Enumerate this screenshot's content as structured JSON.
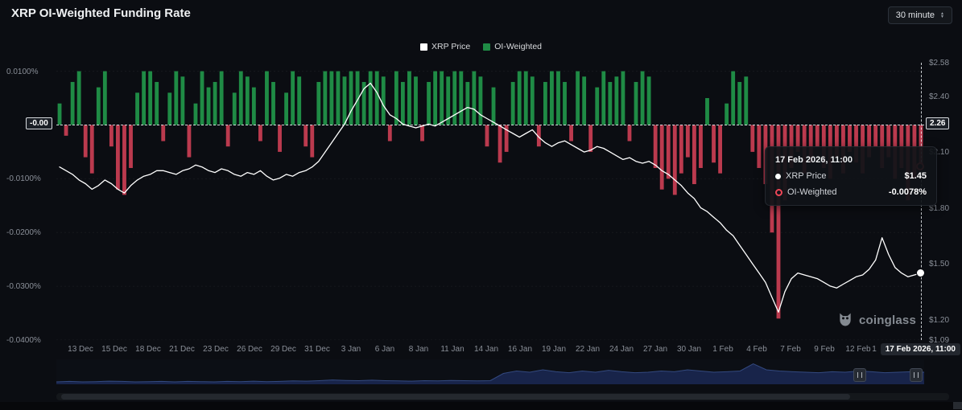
{
  "header": {
    "title": "XRP OI-Weighted Funding Rate",
    "interval_label": "30 minute"
  },
  "legend": [
    {
      "label": "XRP Price",
      "color": "#ffffff"
    },
    {
      "label": "OI-Weighted",
      "color": "#1f8b45"
    }
  ],
  "colors": {
    "background": "#0b0d12",
    "positive_bar": "#1f8b45",
    "negative_bar": "#bb3a4e",
    "price_line": "#ffffff",
    "accent_red": "#ef4656",
    "nav_fill": "#18244a",
    "nav_stroke": "#33497f"
  },
  "tooltip": {
    "date": "17 Feb 2026, 11:00",
    "rows": [
      {
        "label": "XRP Price",
        "value": "$1.45"
      },
      {
        "label": "OI-Weighted",
        "value": "-0.0078%"
      }
    ]
  },
  "watermark": {
    "text": "coinglass"
  },
  "axes": {
    "left_ticks": [
      {
        "value": 0.01,
        "label": "0.0100%"
      },
      {
        "value": -0.01,
        "label": "-0.0100%"
      },
      {
        "value": -0.02,
        "label": "-0.0200%"
      },
      {
        "value": -0.03,
        "label": "-0.0300%"
      },
      {
        "value": -0.04,
        "label": "-0.0400%"
      }
    ],
    "left_zero_label": "-0.00",
    "right_ticks": [
      {
        "value": 2.58,
        "label": "$2.58"
      },
      {
        "value": 2.4,
        "label": "$2.40"
      },
      {
        "value": 2.1,
        "label": "$2.10"
      },
      {
        "value": 1.8,
        "label": "$1.80"
      },
      {
        "value": 1.5,
        "label": "$1.50"
      },
      {
        "value": 1.2,
        "label": "$1.20"
      },
      {
        "value": 1.09,
        "label": "$1.09"
      }
    ],
    "right_zero_label": "2.26",
    "x_labels": [
      "13 Dec",
      "15 Dec",
      "18 Dec",
      "21 Dec",
      "23 Dec",
      "26 Dec",
      "29 Dec",
      "31 Dec",
      "3 Jan",
      "6 Jan",
      "8 Jan",
      "11 Jan",
      "14 Jan",
      "16 Jan",
      "19 Jan",
      "22 Jan",
      "24 Jan",
      "27 Jan",
      "30 Jan",
      "1 Feb",
      "4 Feb",
      "7 Feb",
      "9 Feb",
      "12 Feb"
    ],
    "x_partial_label": "1",
    "x_current_label": "17 Feb 2026, 11:00"
  },
  "chart_data": {
    "type": "combo",
    "title": "XRP OI-Weighted Funding Rate",
    "x_start": "13 Dec",
    "x_end": "17 Feb 2026, 11:00",
    "points_per_day": 2,
    "funding_ylim": [
      -0.04,
      0.01158
    ],
    "price_ylim": [
      1.09,
      2.58
    ],
    "zero_line_funding": 0,
    "zero_line_price_label": 2.26,
    "legend_position": "top-center",
    "grid": "faint-horizontal",
    "series": [
      {
        "name": "OI-Weighted",
        "type": "bar",
        "axis": "funding",
        "unit": "%",
        "values": [
          0.004,
          -0.002,
          0.008,
          0.01,
          -0.006,
          -0.009,
          0.007,
          0.01,
          -0.004,
          -0.012,
          -0.013,
          -0.008,
          0.006,
          0.01,
          0.01,
          0.008,
          -0.003,
          0.006,
          0.01,
          0.009,
          -0.006,
          0.004,
          0.01,
          0.007,
          0.008,
          0.01,
          -0.004,
          0.006,
          0.01,
          0.009,
          0.007,
          -0.003,
          0.01,
          0.008,
          -0.005,
          0.006,
          0.01,
          0.009,
          -0.004,
          -0.006,
          0.008,
          0.01,
          0.01,
          0.01,
          0.009,
          0.01,
          0.01,
          0.008,
          0.01,
          0.01,
          0.009,
          -0.003,
          0.01,
          0.008,
          0.01,
          0.009,
          -0.003,
          0.008,
          0.01,
          0.01,
          0.009,
          0.01,
          0.01,
          0.008,
          0.01,
          0.009,
          -0.004,
          0.007,
          -0.007,
          -0.005,
          0.008,
          0.01,
          0.01,
          0.009,
          -0.004,
          0.008,
          0.01,
          0.01,
          0.008,
          -0.003,
          0.01,
          0.009,
          -0.005,
          0.007,
          0.01,
          0.008,
          0.009,
          0.01,
          -0.003,
          0.008,
          0.01,
          0.009,
          -0.008,
          -0.012,
          -0.01,
          -0.013,
          -0.009,
          -0.006,
          -0.011,
          -0.008,
          0.005,
          -0.007,
          -0.009,
          0.004,
          0.01,
          0.008,
          0.009,
          -0.005,
          -0.008,
          -0.011,
          -0.02,
          -0.036,
          -0.014,
          -0.008,
          -0.005,
          -0.009,
          -0.007,
          -0.004,
          -0.008,
          -0.01,
          -0.006,
          -0.009,
          -0.005,
          -0.007,
          -0.009,
          -0.006,
          -0.004,
          -0.008,
          -0.006,
          -0.01,
          -0.008,
          -0.014,
          -0.01,
          -0.0078
        ]
      },
      {
        "name": "XRP Price",
        "type": "line",
        "axis": "price",
        "unit": "USD",
        "values": [
          2.02,
          2.0,
          1.98,
          1.95,
          1.93,
          1.9,
          1.92,
          1.95,
          1.93,
          1.9,
          1.88,
          1.92,
          1.95,
          1.97,
          1.98,
          2.0,
          2.0,
          1.99,
          1.98,
          2.0,
          2.01,
          2.03,
          2.02,
          2.0,
          1.99,
          2.01,
          2.0,
          1.98,
          1.97,
          1.99,
          1.98,
          2.0,
          1.97,
          1.95,
          1.96,
          1.98,
          1.97,
          1.99,
          2.0,
          2.02,
          2.05,
          2.1,
          2.15,
          2.2,
          2.25,
          2.32,
          2.38,
          2.44,
          2.47,
          2.42,
          2.35,
          2.3,
          2.28,
          2.25,
          2.24,
          2.23,
          2.24,
          2.25,
          2.24,
          2.26,
          2.28,
          2.3,
          2.32,
          2.34,
          2.33,
          2.3,
          2.28,
          2.26,
          2.24,
          2.22,
          2.2,
          2.18,
          2.2,
          2.22,
          2.18,
          2.15,
          2.13,
          2.15,
          2.16,
          2.14,
          2.12,
          2.1,
          2.11,
          2.13,
          2.12,
          2.1,
          2.08,
          2.06,
          2.07,
          2.05,
          2.04,
          2.05,
          2.03,
          2.0,
          1.98,
          1.95,
          1.92,
          1.88,
          1.85,
          1.8,
          1.78,
          1.75,
          1.72,
          1.68,
          1.65,
          1.6,
          1.55,
          1.5,
          1.45,
          1.4,
          1.32,
          1.24,
          1.35,
          1.42,
          1.45,
          1.44,
          1.43,
          1.42,
          1.4,
          1.38,
          1.37,
          1.39,
          1.41,
          1.43,
          1.44,
          1.47,
          1.52,
          1.64,
          1.55,
          1.48,
          1.45,
          1.43,
          1.44,
          1.45
        ]
      }
    ],
    "navigator": {
      "values": [
        0.1,
        0.12,
        0.1,
        0.11,
        0.13,
        0.12,
        0.1,
        0.11,
        0.12,
        0.1,
        0.12,
        0.11,
        0.1,
        0.12,
        0.11,
        0.13,
        0.11,
        0.12,
        0.14,
        0.13,
        0.15,
        0.18,
        0.16,
        0.15,
        0.17,
        0.15,
        0.14,
        0.13,
        0.15,
        0.14,
        0.16,
        0.15,
        0.14,
        0.15,
        0.45,
        0.55,
        0.5,
        0.6,
        0.52,
        0.48,
        0.55,
        0.5,
        0.58,
        0.52,
        0.48,
        0.5,
        0.55,
        0.52,
        0.6,
        0.55,
        0.5,
        0.52,
        0.55,
        0.85,
        0.6,
        0.55,
        0.52,
        0.5,
        0.48,
        0.52,
        0.5,
        0.55,
        0.52,
        0.48,
        0.5,
        0.52,
        0.5
      ]
    }
  }
}
